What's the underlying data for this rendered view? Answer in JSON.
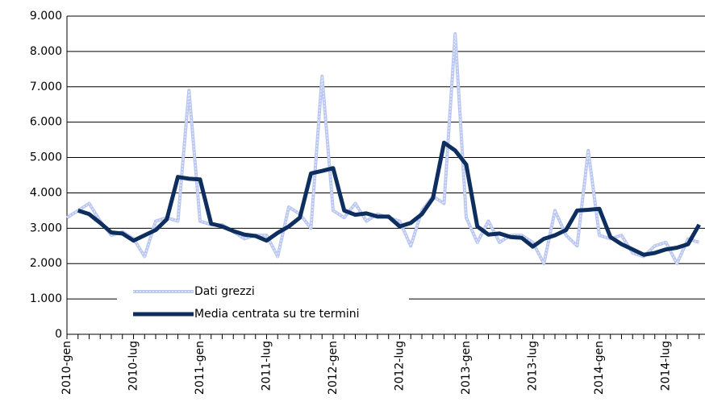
{
  "chart_data": {
    "type": "line",
    "categories": [
      "2010-gen",
      null,
      null,
      null,
      null,
      null,
      "2010-lug",
      null,
      null,
      null,
      null,
      null,
      "2011-gen",
      null,
      null,
      null,
      null,
      null,
      "2011-lug",
      null,
      null,
      null,
      null,
      null,
      "2012-gen",
      null,
      null,
      null,
      null,
      null,
      "2012-lug",
      null,
      null,
      null,
      null,
      null,
      "2013-gen",
      null,
      null,
      null,
      null,
      null,
      "2013-lug",
      null,
      null,
      null,
      null,
      null,
      "2014-gen",
      null,
      null,
      null,
      null,
      null,
      "2014-lug",
      null,
      null,
      null
    ],
    "series": [
      {
        "name": "Dati grezzi",
        "color": "#b9c6f0",
        "values": [
          3300,
          3500,
          3700,
          3200,
          2800,
          2900,
          2700,
          2200,
          3200,
          3300,
          3200,
          6900,
          3200,
          3100,
          3100,
          2900,
          2700,
          2800,
          2800,
          2200,
          3600,
          3400,
          3000,
          7300,
          3500,
          3300,
          3700,
          3200,
          3400,
          3300,
          3200,
          2500,
          3500,
          3900,
          3700,
          8500,
          3300,
          2600,
          3200,
          2600,
          2800,
          2800,
          2600,
          2000,
          3500,
          2800,
          2500,
          5200,
          2800,
          2700,
          2800,
          2300,
          2200,
          2500,
          2600,
          2000,
          2700,
          2600
        ]
      },
      {
        "name": "Media centrata su tre termini",
        "color": "#0d2e5e",
        "values": [
          null,
          3500,
          3400,
          3150,
          2880,
          2850,
          2650,
          2800,
          2950,
          3250,
          4450,
          4400,
          4380,
          3130,
          3050,
          2920,
          2820,
          2780,
          2650,
          2870,
          3050,
          3300,
          4550,
          4620,
          4700,
          3500,
          3380,
          3420,
          3330,
          3330,
          3050,
          3150,
          3400,
          3850,
          5420,
          5200,
          4800,
          3050,
          2820,
          2850,
          2750,
          2730,
          2480,
          2700,
          2800,
          2950,
          3500,
          3520,
          3550,
          2750,
          2550,
          2400,
          2250,
          2300,
          2400,
          2450,
          2550,
          3100
        ]
      }
    ],
    "ylim": [
      0,
      9000
    ],
    "yticks": [
      0,
      {
        "value": 1000,
        "label": "1.000"
      },
      {
        "value": 2000,
        "label": "2.000"
      },
      {
        "value": 3000,
        "label": "3.000"
      },
      {
        "value": 4000,
        "label": "4.000"
      },
      {
        "value": 5000,
        "label": "5.000"
      },
      {
        "value": 6000,
        "label": "6.000"
      },
      {
        "value": 7000,
        "label": "7.000"
      },
      {
        "value": 8000,
        "label": "8.000"
      },
      {
        "value": 9000,
        "label": "9.000"
      }
    ],
    "grid": true,
    "legend": "lower-left"
  }
}
